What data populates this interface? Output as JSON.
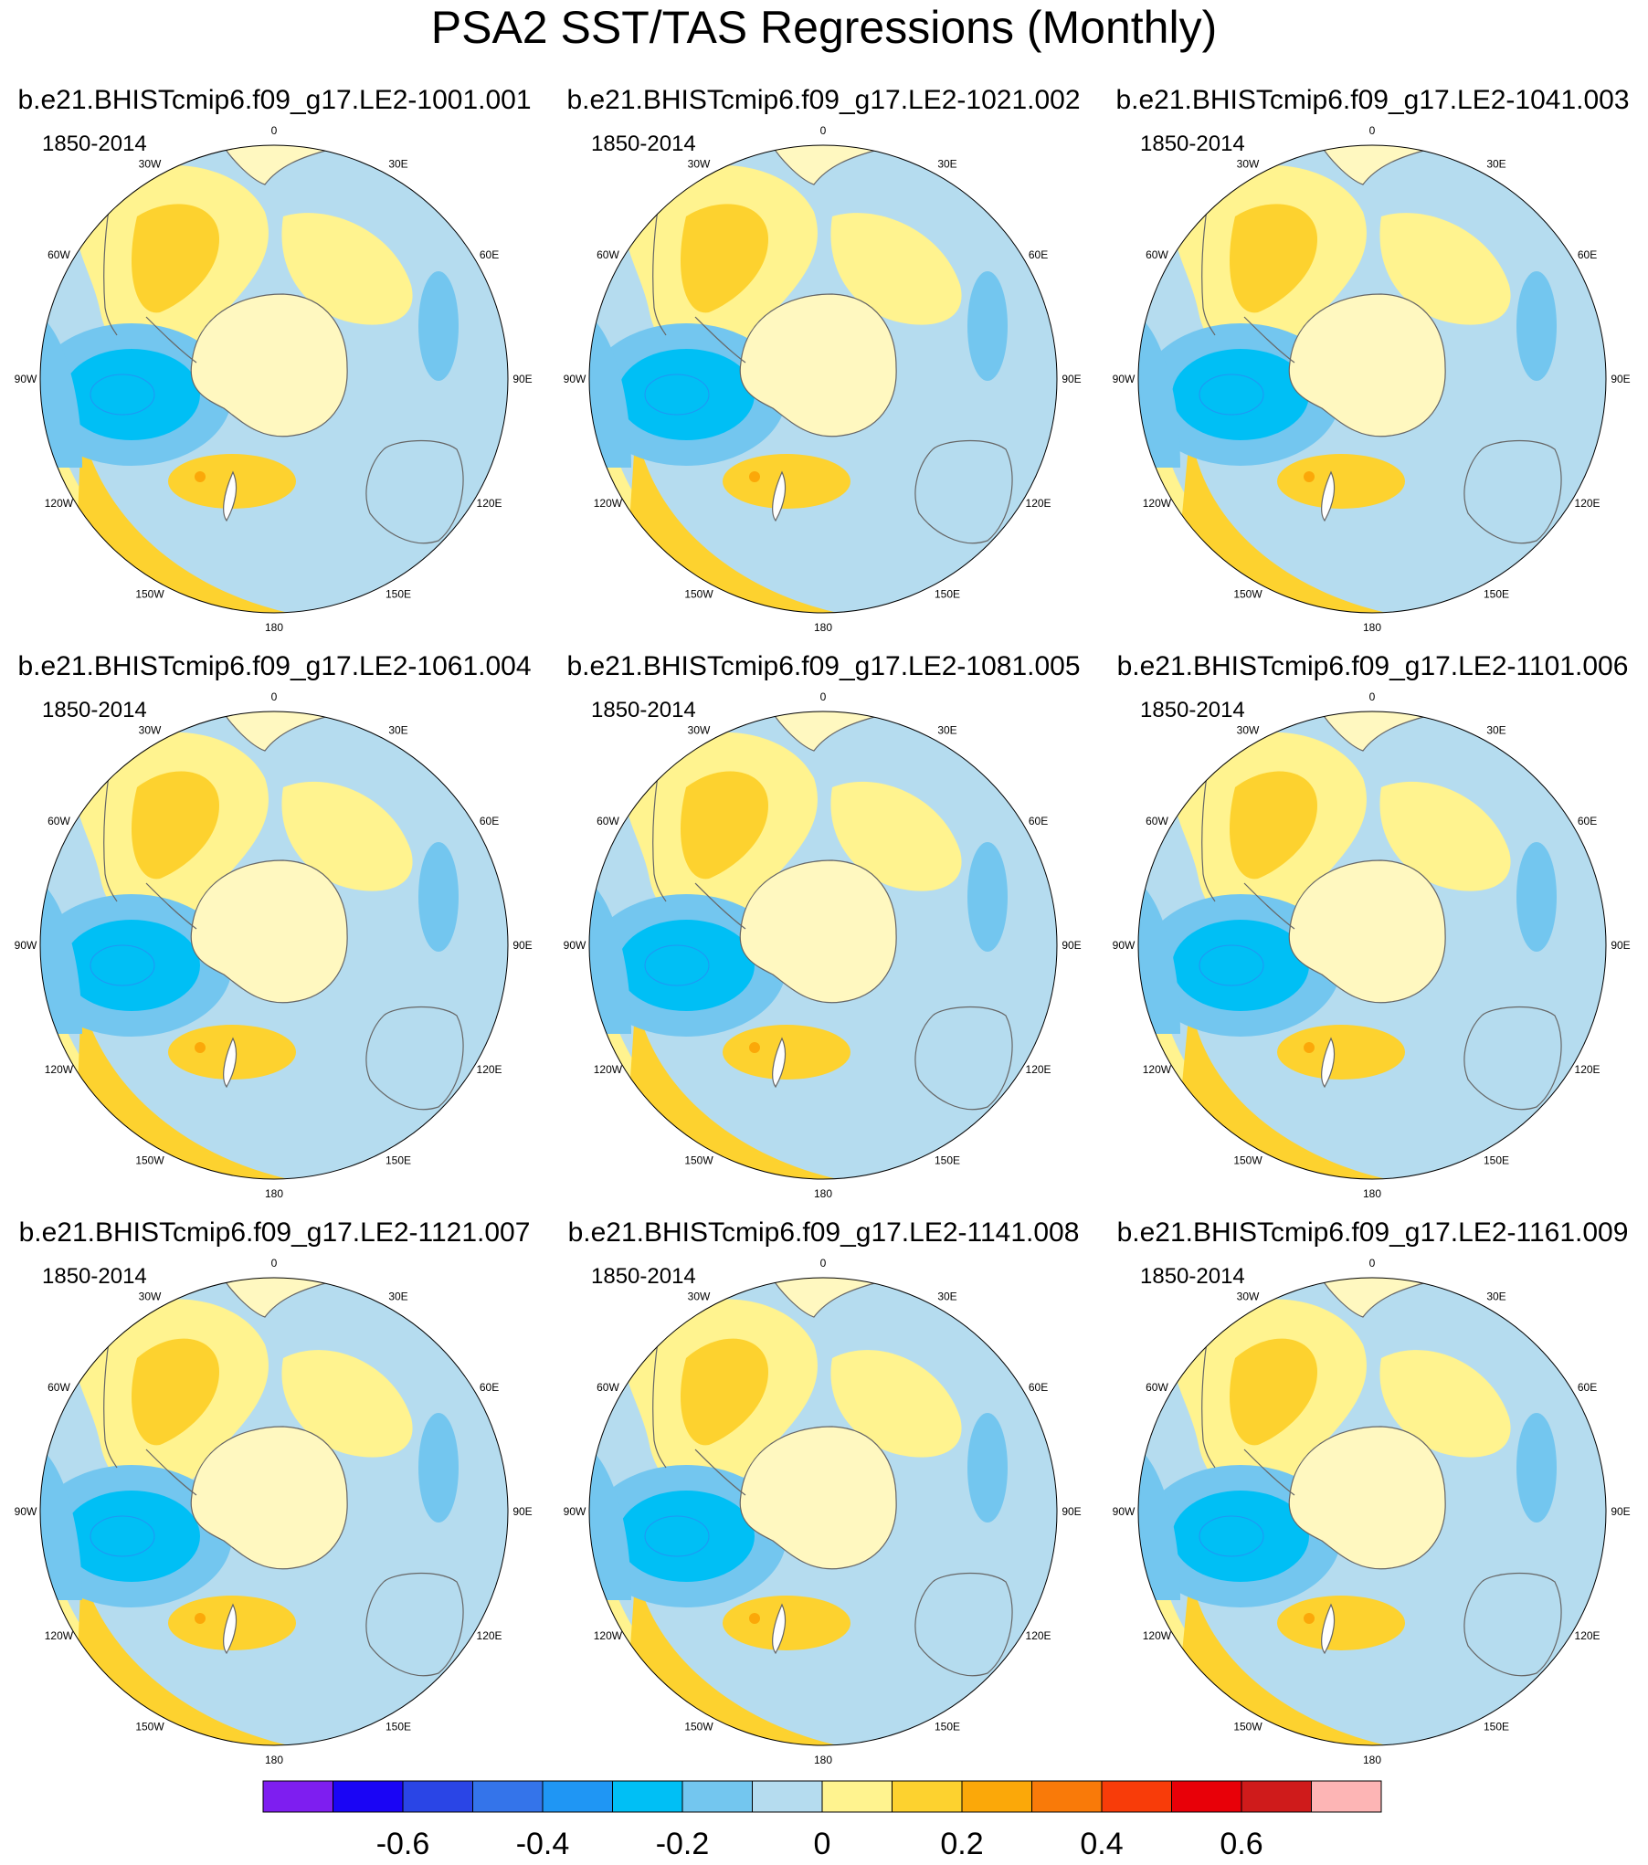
{
  "chart_data": {
    "type": "heatmap",
    "title": "PSA2 SST/TAS Regressions (Monthly)",
    "projection": "south-polar stereographic",
    "period": "1850-2014",
    "longitude_labels": [
      "0",
      "30E",
      "60E",
      "90E",
      "120E",
      "150E",
      "180",
      "150W",
      "120W",
      "90W",
      "60W",
      "30W"
    ],
    "panels": [
      {
        "name": "b.e21.BHISTcmip6.f09_g17.LE2-1001.001",
        "period": "1850-2014",
        "min_anom": -0.3,
        "max_anom": 0.25
      },
      {
        "name": "b.e21.BHISTcmip6.f09_g17.LE2-1021.002",
        "period": "1850-2014",
        "min_anom": -0.3,
        "max_anom": 0.2
      },
      {
        "name": "b.e21.BHISTcmip6.f09_g17.LE2-1041.003",
        "period": "1850-2014",
        "min_anom": -0.35,
        "max_anom": 0.25
      },
      {
        "name": "b.e21.BHISTcmip6.f09_g17.LE2-1061.004",
        "period": "1850-2014",
        "min_anom": -0.35,
        "max_anom": 0.3
      },
      {
        "name": "b.e21.BHISTcmip6.f09_g17.LE2-1081.005",
        "period": "1850-2014",
        "min_anom": -0.35,
        "max_anom": 0.3
      },
      {
        "name": "b.e21.BHISTcmip6.f09_g17.LE2-1101.006",
        "period": "1850-2014",
        "min_anom": -0.3,
        "max_anom": 0.25
      },
      {
        "name": "b.e21.BHISTcmip6.f09_g17.LE2-1121.007",
        "period": "1850-2014",
        "min_anom": -0.3,
        "max_anom": 0.25
      },
      {
        "name": "b.e21.BHISTcmip6.f09_g17.LE2-1141.008",
        "period": "1850-2014",
        "min_anom": -0.2,
        "max_anom": 0.2
      },
      {
        "name": "b.e21.BHISTcmip6.f09_g17.LE2-1161.009",
        "period": "1850-2014",
        "min_anom": -0.3,
        "max_anom": 0.25
      }
    ],
    "colorbar": {
      "colors": [
        "#7e1ef0",
        "#1a05f5",
        "#2a45e6",
        "#3474ea",
        "#1f96f4",
        "#00bff5",
        "#73c6ef",
        "#b5dcef",
        "#fff38f",
        "#fdd22f",
        "#fba809",
        "#f97a09",
        "#f83c09",
        "#e80008",
        "#cf1b1b",
        "#fdb5b5"
      ],
      "tick_values": [
        -0.6,
        -0.4,
        -0.2,
        0,
        0.2,
        0.4,
        0.6
      ],
      "tick_labels": [
        "-0.6",
        "-0.4",
        "-0.2",
        "0",
        "0.2",
        "0.4",
        "0.6"
      ],
      "boundaries": [
        -0.7,
        -0.6,
        -0.5,
        -0.4,
        -0.3,
        -0.2,
        -0.1,
        0,
        0.1,
        0.2,
        0.3,
        0.4,
        0.5,
        0.6,
        0.7
      ]
    }
  }
}
